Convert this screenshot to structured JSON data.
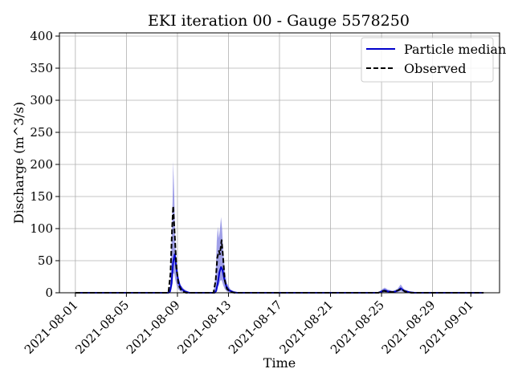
{
  "chart_data": {
    "type": "line",
    "title": "EKI iteration 00 - Gauge 5578250",
    "xlabel": "Time",
    "ylabel": "Discharge (m^3/s)",
    "x_type": "date",
    "xlim": [
      "2021-07-30T18:00",
      "2021-09-03T06:00"
    ],
    "ylim": [
      0,
      405
    ],
    "y_ticks": [
      0,
      50,
      100,
      150,
      200,
      250,
      300,
      350,
      400
    ],
    "x_ticks": [
      "2021-08-01",
      "2021-08-05",
      "2021-08-09",
      "2021-08-13",
      "2021-08-17",
      "2021-08-21",
      "2021-08-25",
      "2021-08-29",
      "2021-09-01"
    ],
    "grid": true,
    "legend_position": "top-right",
    "colors": {
      "median": "#0000cc",
      "band": "#8080e0",
      "observed": "#000000"
    },
    "series": [
      {
        "name": "Particle median",
        "style": "solid",
        "points": [
          [
            "2021-08-01T00:00",
            0
          ],
          [
            "2021-08-08T07:00",
            0
          ],
          [
            "2021-08-08T10:00",
            2
          ],
          [
            "2021-08-08T13:00",
            15
          ],
          [
            "2021-08-08T16:00",
            48
          ],
          [
            "2021-08-08T19:00",
            60
          ],
          [
            "2021-08-08T22:00",
            38
          ],
          [
            "2021-08-09T01:00",
            22
          ],
          [
            "2021-08-09T04:00",
            12
          ],
          [
            "2021-08-09T08:00",
            6
          ],
          [
            "2021-08-09T14:00",
            2
          ],
          [
            "2021-08-09T22:00",
            0
          ],
          [
            "2021-08-11T22:00",
            0
          ],
          [
            "2021-08-12T01:00",
            3
          ],
          [
            "2021-08-12T04:00",
            15
          ],
          [
            "2021-08-12T07:00",
            32
          ],
          [
            "2021-08-12T10:00",
            40
          ],
          [
            "2021-08-12T13:00",
            35
          ],
          [
            "2021-08-12T16:00",
            22
          ],
          [
            "2021-08-12T20:00",
            10
          ],
          [
            "2021-08-13T01:00",
            4
          ],
          [
            "2021-08-13T08:00",
            1
          ],
          [
            "2021-08-13T16:00",
            0
          ],
          [
            "2021-08-24T18:00",
            0
          ],
          [
            "2021-08-25T00:00",
            2
          ],
          [
            "2021-08-25T06:00",
            4
          ],
          [
            "2021-08-25T12:00",
            2
          ],
          [
            "2021-08-25T22:00",
            1
          ],
          [
            "2021-08-26T06:00",
            3
          ],
          [
            "2021-08-26T12:00",
            7
          ],
          [
            "2021-08-26T18:00",
            3
          ],
          [
            "2021-08-27T04:00",
            1
          ],
          [
            "2021-08-27T14:00",
            0
          ],
          [
            "2021-09-02T00:00",
            0
          ]
        ]
      },
      {
        "name": "Observed",
        "style": "dashed",
        "points": [
          [
            "2021-08-01T00:00",
            0
          ],
          [
            "2021-08-08T07:00",
            0
          ],
          [
            "2021-08-08T11:00",
            30
          ],
          [
            "2021-08-08T14:00",
            100
          ],
          [
            "2021-08-08T16:00",
            135
          ],
          [
            "2021-08-08T19:00",
            90
          ],
          [
            "2021-08-08T22:00",
            40
          ],
          [
            "2021-08-09T02:00",
            12
          ],
          [
            "2021-08-09T08:00",
            3
          ],
          [
            "2021-08-09T16:00",
            0
          ],
          [
            "2021-08-11T20:00",
            0
          ],
          [
            "2021-08-12T00:00",
            20
          ],
          [
            "2021-08-12T03:00",
            55
          ],
          [
            "2021-08-12T06:00",
            65
          ],
          [
            "2021-08-12T08:00",
            60
          ],
          [
            "2021-08-12T11:00",
            82
          ],
          [
            "2021-08-12T14:00",
            55
          ],
          [
            "2021-08-12T17:00",
            20
          ],
          [
            "2021-08-12T21:00",
            6
          ],
          [
            "2021-08-13T04:00",
            1
          ],
          [
            "2021-08-13T12:00",
            0
          ],
          [
            "2021-08-24T18:00",
            0
          ],
          [
            "2021-08-25T04:00",
            3
          ],
          [
            "2021-08-25T10:00",
            2
          ],
          [
            "2021-08-25T20:00",
            1
          ],
          [
            "2021-08-26T08:00",
            4
          ],
          [
            "2021-08-26T13:00",
            6
          ],
          [
            "2021-08-26T20:00",
            2
          ],
          [
            "2021-08-27T08:00",
            0
          ],
          [
            "2021-09-02T00:00",
            0
          ]
        ]
      }
    ],
    "band": {
      "style": "filled",
      "points": [
        [
          "2021-08-01T00:00",
          0,
          0
        ],
        [
          "2021-08-08T07:00",
          0,
          0
        ],
        [
          "2021-08-08T10:00",
          0,
          8
        ],
        [
          "2021-08-08T13:00",
          5,
          80
        ],
        [
          "2021-08-08T15:00",
          15,
          150
        ],
        [
          "2021-08-08T16:00",
          30,
          205
        ],
        [
          "2021-08-08T18:00",
          30,
          150
        ],
        [
          "2021-08-08T20:00",
          20,
          80
        ],
        [
          "2021-08-08T23:00",
          10,
          40
        ],
        [
          "2021-08-09T02:00",
          5,
          22
        ],
        [
          "2021-08-09T06:00",
          2,
          12
        ],
        [
          "2021-08-09T12:00",
          1,
          6
        ],
        [
          "2021-08-09T20:00",
          0,
          2
        ],
        [
          "2021-08-10T04:00",
          0,
          0
        ],
        [
          "2021-08-11T20:00",
          0,
          0
        ],
        [
          "2021-08-12T00:00",
          1,
          30
        ],
        [
          "2021-08-12T02:00",
          5,
          80
        ],
        [
          "2021-08-12T04:00",
          10,
          103
        ],
        [
          "2021-08-12T06:00",
          12,
          85
        ],
        [
          "2021-08-12T08:00",
          18,
          100
        ],
        [
          "2021-08-12T10:00",
          20,
          118
        ],
        [
          "2021-08-12T12:00",
          18,
          100
        ],
        [
          "2021-08-12T14:00",
          12,
          70
        ],
        [
          "2021-08-12T17:00",
          6,
          35
        ],
        [
          "2021-08-12T21:00",
          2,
          15
        ],
        [
          "2021-08-13T04:00",
          0,
          5
        ],
        [
          "2021-08-13T12:00",
          0,
          2
        ],
        [
          "2021-08-13T22:00",
          0,
          0
        ],
        [
          "2021-08-24T18:00",
          0,
          0
        ],
        [
          "2021-08-25T00:00",
          0,
          5
        ],
        [
          "2021-08-25T06:00",
          1,
          8
        ],
        [
          "2021-08-25T12:00",
          1,
          5
        ],
        [
          "2021-08-25T22:00",
          0,
          3
        ],
        [
          "2021-08-26T06:00",
          1,
          6
        ],
        [
          "2021-08-26T12:00",
          2,
          13
        ],
        [
          "2021-08-26T18:00",
          1,
          6
        ],
        [
          "2021-08-27T04:00",
          0,
          2
        ],
        [
          "2021-08-27T16:00",
          0,
          0
        ],
        [
          "2021-09-02T00:00",
          0,
          0
        ]
      ]
    }
  }
}
